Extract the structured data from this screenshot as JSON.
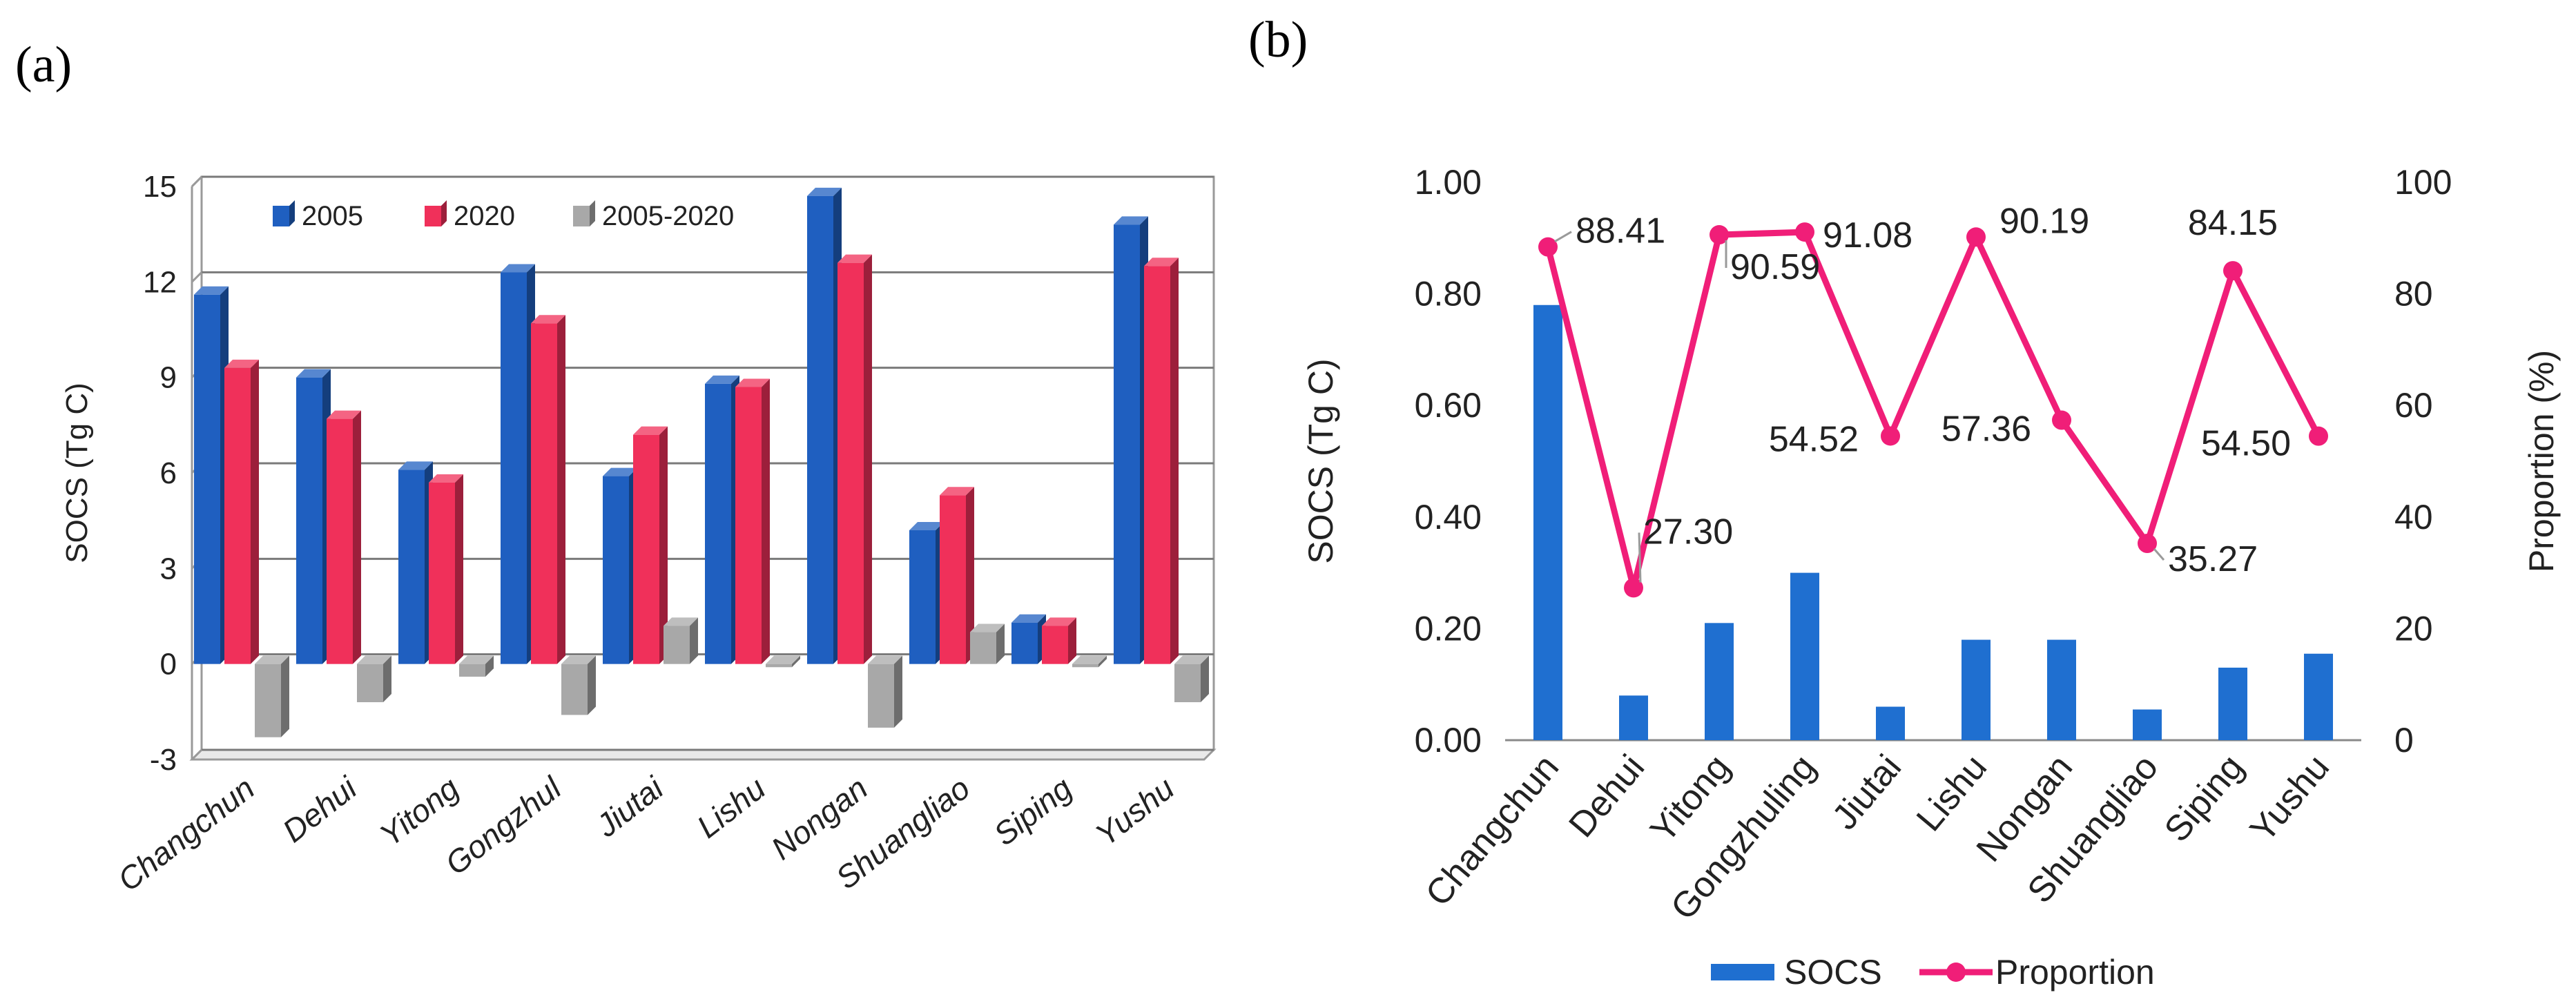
{
  "chart_data": [
    {
      "panel_label": "(a)",
      "type": "bar",
      "style": "3d-clustered",
      "categories": [
        "Changchun",
        "Dehui",
        "Yitong",
        "Gongzhul",
        "Jiutai",
        "Lishu",
        "Nongan",
        "Shuangliao",
        "Siping",
        "Yushu"
      ],
      "series": [
        {
          "name": "2005",
          "color": "#1F5FC0",
          "values": [
            11.6,
            9.0,
            6.1,
            12.3,
            5.9,
            8.8,
            14.7,
            4.2,
            1.3,
            13.8
          ]
        },
        {
          "name": "2020",
          "color": "#F0305A",
          "values": [
            9.3,
            7.7,
            5.7,
            10.7,
            7.2,
            8.7,
            12.6,
            5.3,
            1.2,
            12.5
          ]
        },
        {
          "name": "2005-2020",
          "color": "#A8A8A8",
          "values": [
            -2.3,
            -1.2,
            -0.4,
            -1.6,
            1.2,
            -0.1,
            -2.0,
            1.0,
            -0.1,
            -1.2
          ]
        }
      ],
      "ylabel": "SOCS (Tg C)",
      "ylim": [
        -3,
        15
      ],
      "yticks": [
        -3,
        0,
        3,
        6,
        9,
        12,
        15
      ],
      "grid": true,
      "legend": "top"
    },
    {
      "panel_label": "(b)",
      "type": "bar+line",
      "categories": [
        "Changchun",
        "Dehui",
        "Yitong",
        "Gongzhuling",
        "Jiutai",
        "Lishu",
        "Nongan",
        "Shuangliao",
        "Siping",
        "Yushu"
      ],
      "series": [
        {
          "name": "SOCS",
          "type": "bar",
          "axis": "left",
          "color": "#1F6FD0",
          "values": [
            0.78,
            0.08,
            0.21,
            0.3,
            0.06,
            0.18,
            0.18,
            0.055,
            0.13,
            0.155
          ]
        },
        {
          "name": "Proportion",
          "type": "line",
          "axis": "right",
          "color": "#F01E78",
          "values": [
            88.41,
            27.3,
            90.59,
            91.08,
            54.52,
            90.19,
            57.36,
            35.27,
            84.15,
            54.5
          ]
        }
      ],
      "data_labels": [
        "88.41",
        "27.30",
        "90.59",
        "91.08",
        "54.52",
        "90.19",
        "57.36",
        "35.27",
        "84.15",
        "54.50"
      ],
      "ylabel_left": "SOCS (Tg C)",
      "ylabel_right": "Proportion (%)",
      "ylim_left": [
        0,
        1
      ],
      "yticks_left": [
        "0.00",
        "0.20",
        "0.40",
        "0.60",
        "0.80",
        "1.00"
      ],
      "ylim_right": [
        0,
        100
      ],
      "yticks_right": [
        "0",
        "20",
        "40",
        "60",
        "80",
        "100"
      ],
      "grid": false,
      "legend": "bottom"
    }
  ]
}
